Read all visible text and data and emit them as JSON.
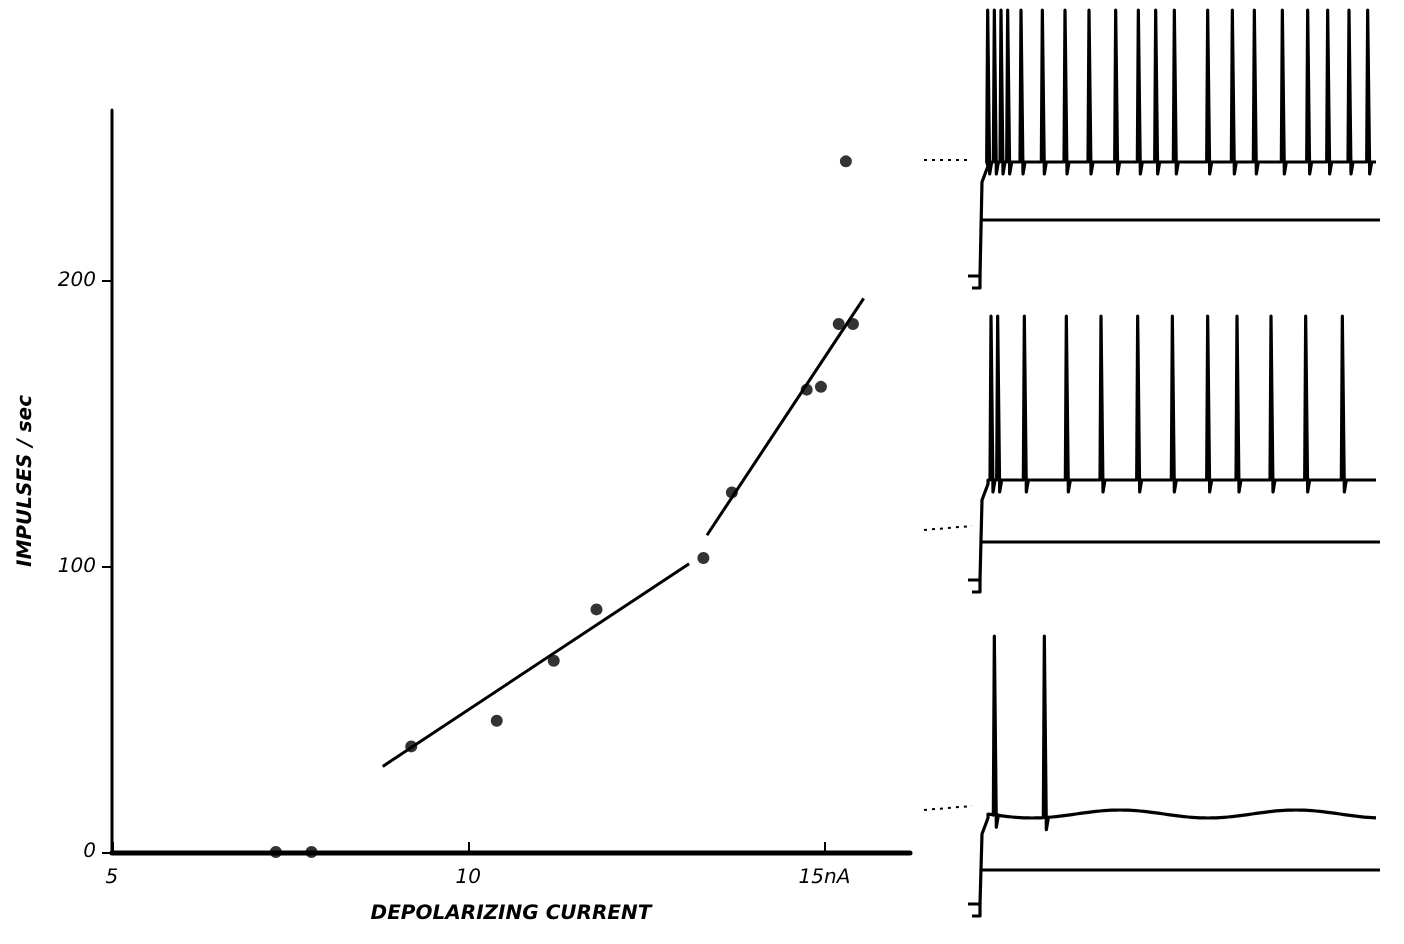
{
  "chart_data": {
    "type": "scatter",
    "xlabel": "DEPOLARIZING CURRENT",
    "ylabel": "IMPULSES / sec",
    "xlim": [
      5,
      16.2
    ],
    "ylim": [
      0,
      260
    ],
    "xticks": [
      5,
      10,
      {
        "value": 15,
        "label": "15nA"
      }
    ],
    "yticks": [
      0,
      100,
      200
    ],
    "grid": false,
    "marker": "circle",
    "series": [
      {
        "color": "#000000",
        "x": [
          7.3,
          7.8,
          9.2,
          10.4,
          11.2,
          11.8,
          13.3,
          13.7,
          14.75,
          14.95,
          15.2,
          15.4,
          15.3
        ],
        "values": [
          0,
          0,
          37,
          46,
          67,
          85,
          103,
          126,
          162,
          163,
          185,
          185,
          242
        ]
      },
      {
        "type": "line",
        "marker": "none",
        "line_style": "solid",
        "color": "#000000",
        "x": [
          8.8,
          13.1
        ],
        "values": [
          30,
          101
        ]
      },
      {
        "type": "line",
        "marker": "none",
        "line_style": "solid",
        "color": "#000000",
        "x": [
          13.35,
          15.55
        ],
        "values": [
          111,
          194
        ]
      }
    ]
  }
}
